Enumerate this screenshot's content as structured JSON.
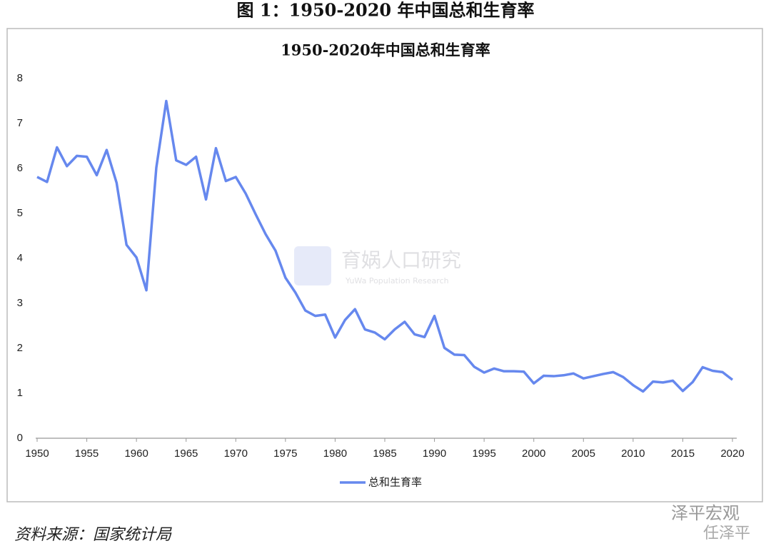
{
  "caption": "图 1：1950-2020 年中国总和生育率",
  "source": "资料来源：国家统计局",
  "watermark": {
    "center": "育娲人口研究",
    "center_sub": "YuWa Population Research",
    "corner": "泽平宏观",
    "corner_sub": "任泽平"
  },
  "chart_data": {
    "type": "line",
    "title": "1950-2020年中国总和生育率",
    "x": [
      1950,
      1951,
      1952,
      1953,
      1954,
      1955,
      1956,
      1957,
      1958,
      1959,
      1960,
      1961,
      1962,
      1963,
      1964,
      1965,
      1966,
      1967,
      1968,
      1969,
      1970,
      1971,
      1972,
      1973,
      1974,
      1975,
      1976,
      1977,
      1978,
      1979,
      1980,
      1981,
      1982,
      1983,
      1984,
      1985,
      1986,
      1987,
      1988,
      1989,
      1990,
      1991,
      1992,
      1993,
      1994,
      1995,
      1996,
      1997,
      1998,
      1999,
      2000,
      2001,
      2002,
      2003,
      2004,
      2005,
      2006,
      2007,
      2008,
      2009,
      2010,
      2011,
      2012,
      2013,
      2014,
      2015,
      2016,
      2017,
      2018,
      2019,
      2020
    ],
    "series": [
      {
        "name": "总和生育率",
        "color": "#6688ee",
        "values": [
          5.81,
          5.7,
          6.47,
          6.05,
          6.28,
          6.26,
          5.85,
          6.41,
          5.68,
          4.3,
          4.02,
          3.29,
          6.02,
          7.5,
          6.18,
          6.08,
          6.26,
          5.31,
          6.45,
          5.72,
          5.81,
          5.44,
          4.98,
          4.54,
          4.17,
          3.57,
          3.24,
          2.84,
          2.72,
          2.75,
          2.24,
          2.63,
          2.87,
          2.42,
          2.35,
          2.2,
          2.42,
          2.59,
          2.31,
          2.25,
          2.72,
          2.01,
          1.86,
          1.85,
          1.59,
          1.46,
          1.55,
          1.49,
          1.49,
          1.48,
          1.22,
          1.39,
          1.38,
          1.4,
          1.44,
          1.33,
          1.38,
          1.43,
          1.47,
          1.36,
          1.18,
          1.04,
          1.26,
          1.24,
          1.28,
          1.05,
          1.25,
          1.58,
          1.5,
          1.47,
          1.3
        ]
      }
    ],
    "xlim": [
      1950,
      2020
    ],
    "xticks": [
      1950,
      1955,
      1960,
      1965,
      1970,
      1975,
      1980,
      1985,
      1990,
      1995,
      2000,
      2005,
      2010,
      2015,
      2020
    ],
    "ylim": [
      0,
      8
    ],
    "yticks": [
      0,
      1,
      2,
      3,
      4,
      5,
      6,
      7,
      8
    ],
    "grid": false,
    "legend": "bottom"
  }
}
